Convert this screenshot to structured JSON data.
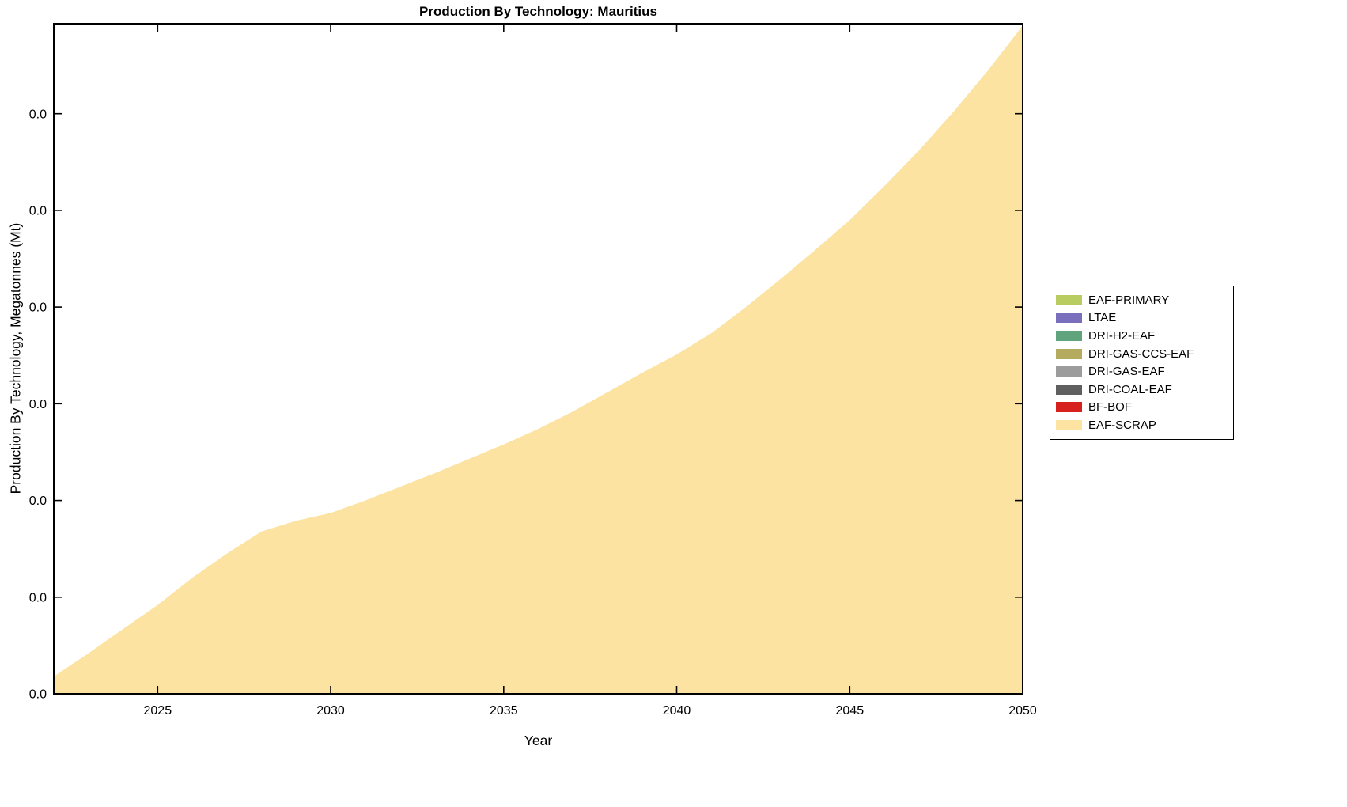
{
  "chart_data": {
    "type": "area",
    "stacked": true,
    "title": "Production By Technology: Mauritius",
    "xlabel": "Year",
    "ylabel": "Production By Technology, Megatonnes (Mt)",
    "xlim": [
      2022,
      2050
    ],
    "xticks": [
      2025,
      2030,
      2035,
      2040,
      2045,
      2050
    ],
    "xtick_labels": [
      "2025",
      "2030",
      "2035",
      "2040",
      "2045",
      "2050"
    ],
    "ylim": [
      0,
      6.93
    ],
    "yticks": [
      0,
      1,
      2,
      3,
      4,
      5,
      6
    ],
    "ytick_labels": [
      "0.0",
      "0.0",
      "0.0",
      "0.0",
      "0.0",
      "0.0",
      "0.0"
    ],
    "y_note": "All y-axis tick labels display as 0.0; series values below are estimated in axis units (1 unit = 1 tick interval)",
    "grid": false,
    "legend_position": "right-outside",
    "legend_border_color": "#000000",
    "legend_background": "#ffffff",
    "axis_color": "#000000",
    "plot_background": "#ffffff",
    "x": [
      2022,
      2023,
      2024,
      2025,
      2026,
      2027,
      2028,
      2029,
      2030,
      2031,
      2032,
      2033,
      2034,
      2035,
      2036,
      2037,
      2038,
      2039,
      2040,
      2041,
      2042,
      2043,
      2044,
      2045,
      2046,
      2047,
      2048,
      2049,
      2050
    ],
    "visible_series": "EAF-SCRAP",
    "series": [
      {
        "name": "EAF-PRIMARY",
        "color": "#b9cc62",
        "values": null
      },
      {
        "name": "LTAE",
        "color": "#7a6fbd",
        "values": null
      },
      {
        "name": "DRI-H2-EAF",
        "color": "#5fa47c",
        "values": null
      },
      {
        "name": "DRI-GAS-CCS-EAF",
        "color": "#b5ab5e",
        "values": null
      },
      {
        "name": "DRI-GAS-EAF",
        "color": "#9c9c9c",
        "values": null
      },
      {
        "name": "DRI-COAL-EAF",
        "color": "#5f5f5f",
        "values": null
      },
      {
        "name": "BF-BOF",
        "color": "#d7211e",
        "values": null
      },
      {
        "name": "EAF-SCRAP",
        "color": "#fce3a1",
        "values": [
          0.18,
          0.42,
          0.67,
          0.92,
          1.2,
          1.45,
          1.68,
          1.79,
          1.87,
          2.0,
          2.14,
          2.28,
          2.43,
          2.58,
          2.74,
          2.92,
          3.12,
          3.32,
          3.51,
          3.73,
          4.0,
          4.29,
          4.59,
          4.9,
          5.25,
          5.62,
          6.02,
          6.45,
          6.91
        ]
      }
    ]
  }
}
